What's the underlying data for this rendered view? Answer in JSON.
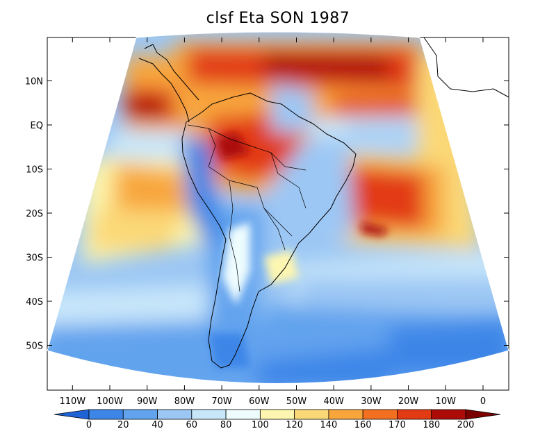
{
  "title": "clsf Eta SON 1987",
  "lat_labels": [
    "10N",
    "EQ",
    "10S",
    "20S",
    "30S",
    "40S",
    "50S"
  ],
  "lat_values": [
    10,
    0,
    -10,
    -20,
    -30,
    -40,
    -50
  ],
  "lon_labels": [
    "110W",
    "100W",
    "90W",
    "80W",
    "70W",
    "60W",
    "50W",
    "40W",
    "30W",
    "20W",
    "10W",
    "0"
  ],
  "lon_values": [
    -110,
    -100,
    -90,
    -80,
    -70,
    -60,
    -50,
    -40,
    -30,
    -20,
    -10,
    0
  ],
  "colorbar": {
    "labels": [
      "0",
      "20",
      "40",
      "60",
      "80",
      "100",
      "120",
      "140",
      "160",
      "170",
      "180",
      "200"
    ],
    "colors": [
      "#1f62d6",
      "#3d86e8",
      "#62a3ee",
      "#9cc7f4",
      "#c7e6fa",
      "#eefcfe",
      "#fdf6b0",
      "#fbd877",
      "#f8a63c",
      "#f2701f",
      "#e23a12",
      "#ac0c08",
      "#7a0000"
    ]
  }
}
